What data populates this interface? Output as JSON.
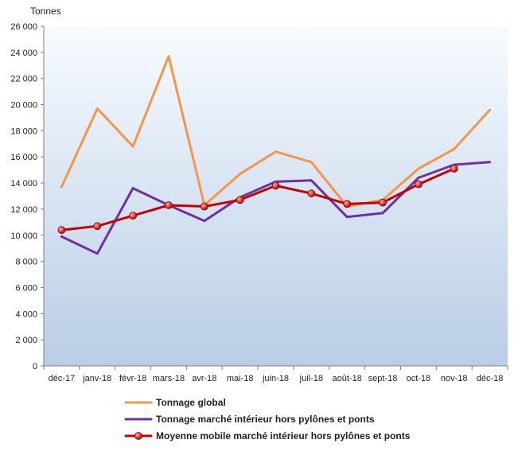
{
  "chart_data": {
    "type": "line",
    "unit_label": "Tonnes",
    "categories": [
      "déc-17",
      "janv-18",
      "févr-18",
      "mars-18",
      "avr-18",
      "mai-18",
      "juin-18",
      "juil-18",
      "août-18",
      "sept-18",
      "oct-18",
      "nov-18",
      "déc-18"
    ],
    "ylim": [
      0,
      26000
    ],
    "yticks": [
      "0",
      "2 000",
      "4 000",
      "6 000",
      "8 000",
      "10 000",
      "12 000",
      "14 000",
      "16 000",
      "18 000",
      "20 000",
      "22 000",
      "24 000",
      "26 000"
    ],
    "grid": false,
    "legend_position": "bottom",
    "series": [
      {
        "name": "Tonnage global",
        "color": "#f79646",
        "markers": false,
        "values": [
          13700,
          19700,
          16800,
          23700,
          12300,
          14700,
          16400,
          15600,
          12200,
          12700,
          15100,
          16600,
          19600
        ]
      },
      {
        "name": "Tonnage marché intérieur hors pylônes et ponts",
        "color": "#7030a0",
        "markers": false,
        "values": [
          9900,
          8600,
          13600,
          12300,
          11100,
          12900,
          14100,
          14200,
          11400,
          11700,
          14400,
          15400,
          15600
        ]
      },
      {
        "name": "Moyenne mobile marché intérieur hors pylônes et ponts",
        "color": "#c00000",
        "markers": true,
        "values": [
          10400,
          10700,
          11500,
          12300,
          12200,
          12700,
          13800,
          13200,
          12400,
          12500,
          13900,
          15100,
          null
        ]
      }
    ]
  }
}
